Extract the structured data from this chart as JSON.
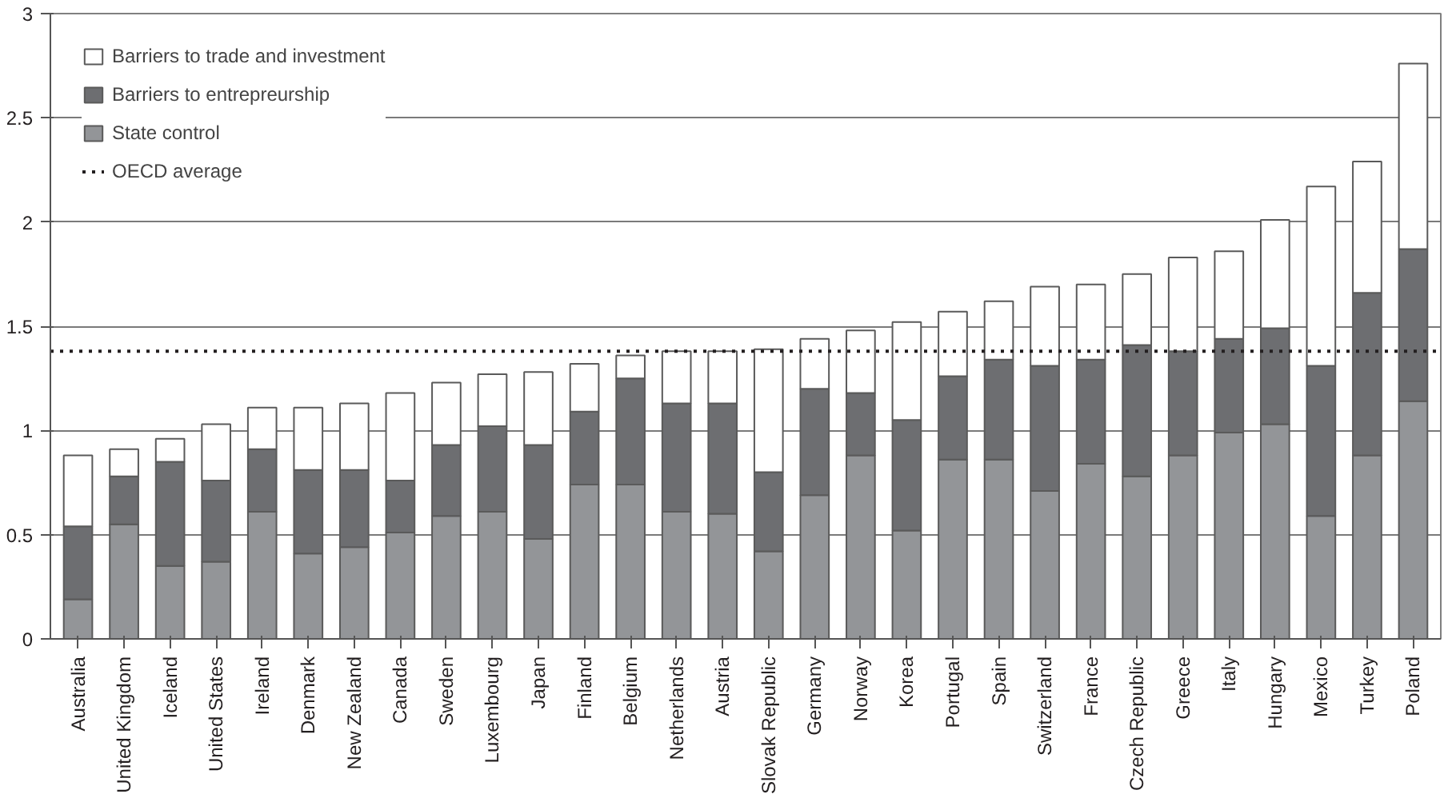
{
  "chart_data": {
    "type": "bar",
    "stacked": true,
    "categories": [
      "Australia",
      "United Kingdom",
      "Iceland",
      "United States",
      "Ireland",
      "Denmark",
      "New Zealand",
      "Canada",
      "Sweden",
      "Luxembourg",
      "Japan",
      "Finland",
      "Belgium",
      "Netherlands",
      "Austria",
      "Slovak Republic",
      "Germany",
      "Norway",
      "Korea",
      "Portugal",
      "Spain",
      "Switzerland",
      "France",
      "Czech Republic",
      "Greece",
      "Italy",
      "Hungary",
      "Mexico",
      "Turkey",
      "Poland"
    ],
    "series": [
      {
        "name": "State control",
        "color": "#939598",
        "values": [
          0.19,
          0.55,
          0.35,
          0.37,
          0.61,
          0.41,
          0.44,
          0.51,
          0.59,
          0.61,
          0.48,
          0.74,
          0.74,
          0.61,
          0.6,
          0.42,
          0.69,
          0.88,
          0.52,
          0.86,
          0.86,
          0.71,
          0.84,
          0.78,
          0.88,
          0.99,
          1.03,
          0.59,
          0.88,
          1.14
        ]
      },
      {
        "name": "Barriers to entrepreurship",
        "color": "#6d6e71",
        "values": [
          0.35,
          0.23,
          0.5,
          0.39,
          0.3,
          0.4,
          0.37,
          0.25,
          0.34,
          0.41,
          0.45,
          0.35,
          0.51,
          0.52,
          0.53,
          0.38,
          0.51,
          0.3,
          0.53,
          0.4,
          0.48,
          0.6,
          0.5,
          0.63,
          0.5,
          0.45,
          0.46,
          0.72,
          0.78,
          0.73
        ]
      },
      {
        "name": "Barriers to trade and investment",
        "color": "#ffffff",
        "values": [
          0.34,
          0.13,
          0.11,
          0.27,
          0.2,
          0.3,
          0.32,
          0.42,
          0.3,
          0.25,
          0.35,
          0.23,
          0.11,
          0.25,
          0.25,
          0.59,
          0.24,
          0.3,
          0.47,
          0.31,
          0.28,
          0.38,
          0.36,
          0.34,
          0.45,
          0.42,
          0.52,
          0.86,
          0.63,
          0.89
        ]
      }
    ],
    "ylim": [
      0,
      3
    ],
    "yticks": [
      0,
      0.5,
      1,
      1.5,
      2,
      2.5,
      3
    ],
    "grid": "y",
    "legend": "top left",
    "ref_lines": [
      {
        "axis": "y",
        "value": 1.38,
        "label": "OECD average",
        "line_style": "dotted",
        "color": "#231f20"
      }
    ]
  }
}
